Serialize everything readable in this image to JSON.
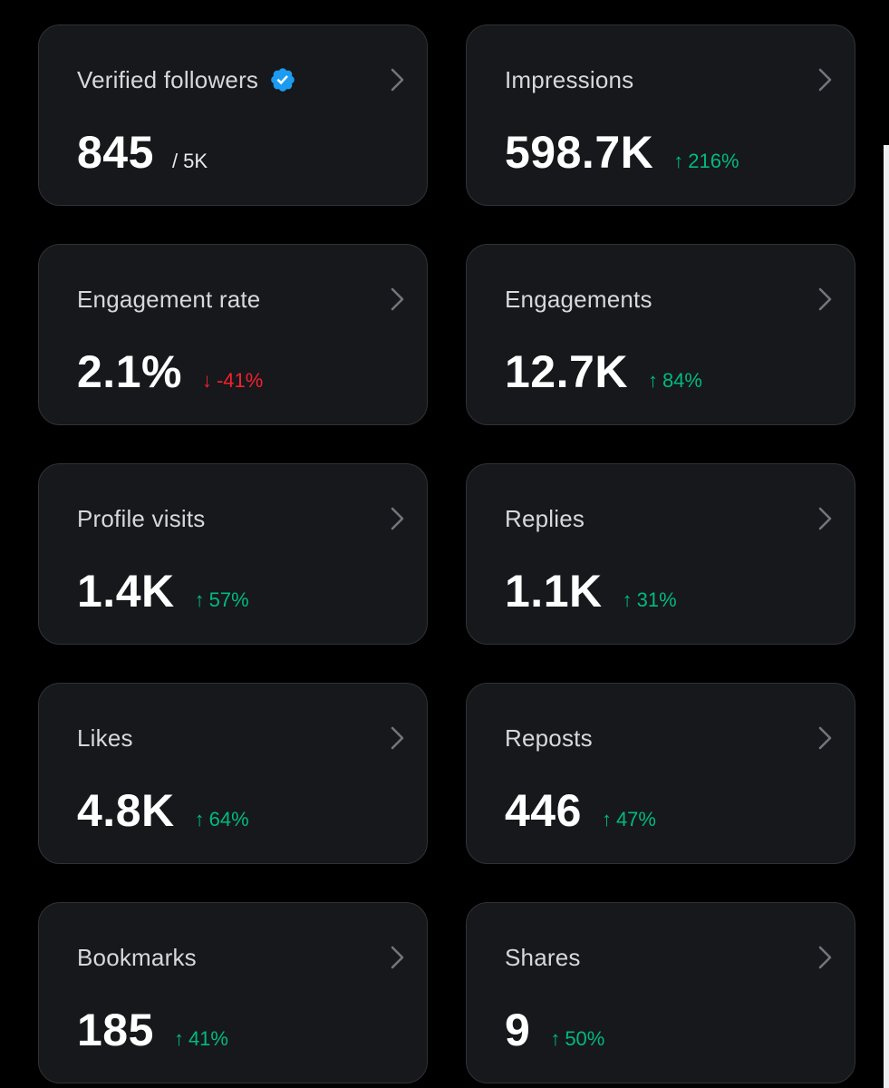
{
  "colors": {
    "background": "#000000",
    "card": "#16181c",
    "border": "#2f3336",
    "positive": "#00ba7c",
    "negative": "#f4212e",
    "verified": "#1d9bf0"
  },
  "metrics": [
    {
      "label": "Verified followers",
      "value": "845",
      "suffix": "/ 5K",
      "verified_icon": "verified-badge-icon"
    },
    {
      "label": "Impressions",
      "value": "598.7K",
      "delta": {
        "arrow": "↑",
        "text": "216%",
        "direction": "up"
      }
    },
    {
      "label": "Engagement rate",
      "value": "2.1%",
      "delta": {
        "arrow": "↓",
        "text": "-41%",
        "direction": "down"
      }
    },
    {
      "label": "Engagements",
      "value": "12.7K",
      "delta": {
        "arrow": "↑",
        "text": "84%",
        "direction": "up"
      }
    },
    {
      "label": "Profile visits",
      "value": "1.4K",
      "delta": {
        "arrow": "↑",
        "text": "57%",
        "direction": "up"
      }
    },
    {
      "label": "Replies",
      "value": "1.1K",
      "delta": {
        "arrow": "↑",
        "text": "31%",
        "direction": "up"
      }
    },
    {
      "label": "Likes",
      "value": "4.8K",
      "delta": {
        "arrow": "↑",
        "text": "64%",
        "direction": "up"
      }
    },
    {
      "label": "Reposts",
      "value": "446",
      "delta": {
        "arrow": "↑",
        "text": "47%",
        "direction": "up"
      }
    },
    {
      "label": "Bookmarks",
      "value": "185",
      "delta": {
        "arrow": "↑",
        "text": "41%",
        "direction": "up"
      }
    },
    {
      "label": "Shares",
      "value": "9",
      "delta": {
        "arrow": "↑",
        "text": "50%",
        "direction": "up"
      }
    }
  ]
}
